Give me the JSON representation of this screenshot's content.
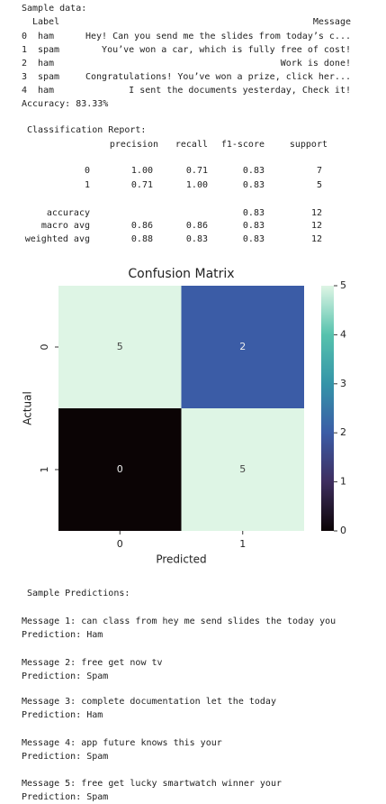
{
  "sample_data": {
    "heading": "Sample data:",
    "columns": [
      "Label",
      "Message"
    ],
    "rows": [
      [
        "0",
        "ham",
        "Hey! Can you send me the slides from today’s c..."
      ],
      [
        "1",
        "spam",
        "You’ve won a car, which is fully free of cost!"
      ],
      [
        "2",
        "ham",
        "Work is done!"
      ],
      [
        "3",
        "spam",
        "Congratulations! You’ve won a prize, click her..."
      ],
      [
        "4",
        "ham",
        "I sent the documents yesterday, Check it!"
      ]
    ],
    "accuracy": "Accuracy: 83.33%"
  },
  "report": {
    "heading": "Classification Report:",
    "columns": [
      "precision",
      "recall",
      "f1-score",
      "support"
    ],
    "rows": [
      {
        "label": "0",
        "values": [
          "1.00",
          "0.71",
          "0.83",
          "7"
        ]
      },
      {
        "label": "1",
        "values": [
          "0.71",
          "1.00",
          "0.83",
          "5"
        ]
      },
      {
        "label": "accuracy",
        "values": [
          null,
          null,
          "0.83",
          "12"
        ]
      },
      {
        "label": "macro avg",
        "values": [
          "0.86",
          "0.86",
          "0.83",
          "12"
        ]
      },
      {
        "label": "weighted avg",
        "values": [
          "0.88",
          "0.83",
          "0.83",
          "12"
        ]
      }
    ]
  },
  "chart_data": {
    "type": "heatmap",
    "title": "Confusion Matrix",
    "x_label": "Predicted",
    "y_label": "Actual",
    "x_categories": [
      "0",
      "1"
    ],
    "y_categories": [
      "0",
      "1"
    ],
    "values": [
      [
        5,
        2
      ],
      [
        0,
        5
      ]
    ],
    "colormap": "mako",
    "zlim": [
      0,
      5
    ],
    "zticks": [
      0,
      1,
      2,
      3,
      4,
      5
    ]
  },
  "predictions": {
    "heading": "Sample Predictions:",
    "items": [
      {
        "message": "Message 1: can class from hey me send slides the today you",
        "prediction": "Prediction: Ham"
      },
      {
        "message": "Message 2: free get now tv",
        "prediction": "Prediction: Spam"
      },
      {
        "message": "Message 3: complete documentation let the today",
        "prediction": "Prediction: Ham"
      },
      {
        "message": "Message 4: app future knows this your",
        "prediction": "Prediction: Spam"
      },
      {
        "message": "Message 5: free get lucky smartwatch winner your",
        "prediction": "Prediction: Spam"
      }
    ]
  }
}
